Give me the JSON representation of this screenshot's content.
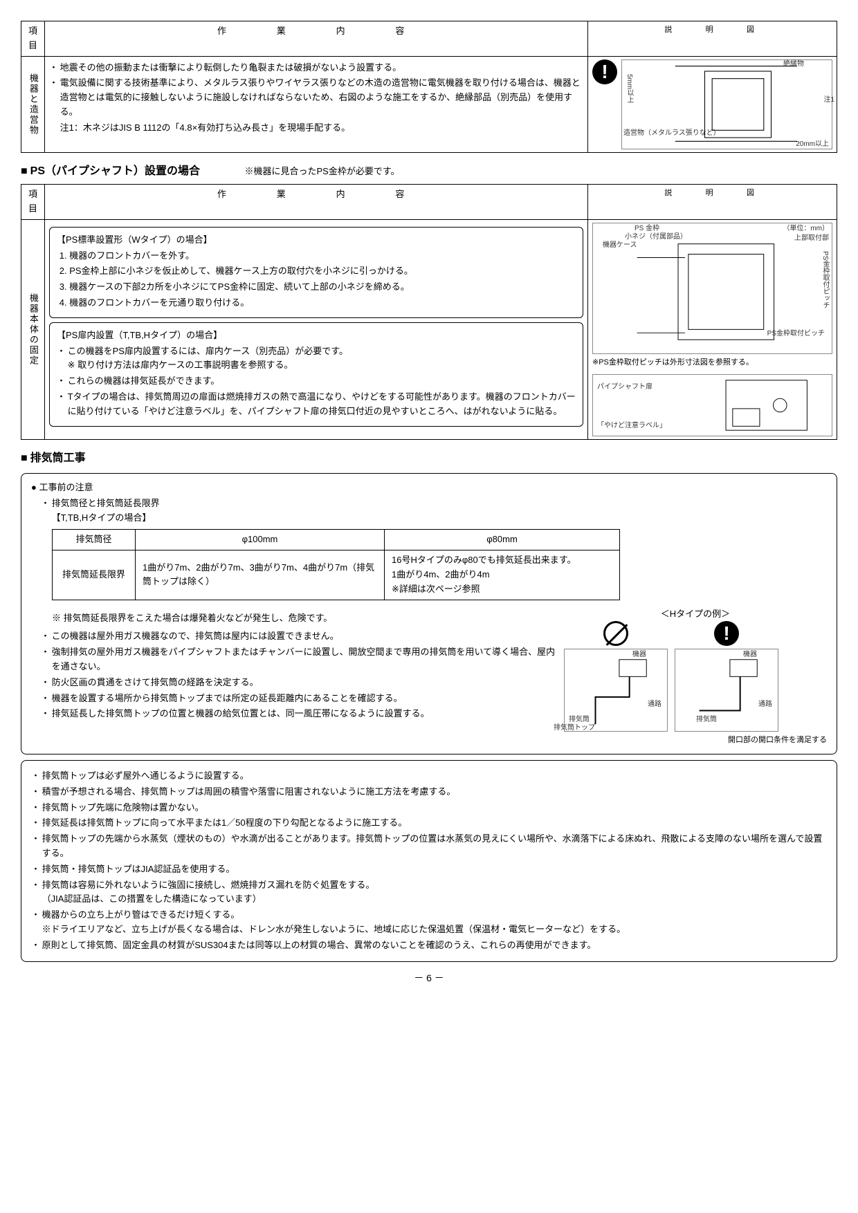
{
  "t1": {
    "h_item": "項目",
    "h_work": "作　　業　　内　　容",
    "h_diag": "説　　明　　図",
    "row_item": "機器と造営物",
    "bul1": "地震その他の振動または衝撃により転倒したり亀裂または破損がないよう設置する。",
    "bul2": "電気設備に関する技術基準により、メタルラス張りやワイヤラス張りなどの木造の造営物に電気機器を取り付ける場合は、機器と造営物とは電気的に接触しないように施設しなければならないため、右図のような施工をするか、絶縁部品（別売品）を使用する。",
    "note1": "注1：木ネジはJIS B 1112の「4.8×有効打ち込み長さ」を現場手配する。",
    "d_labels": {
      "a": "絶縁物",
      "b": "5mm以上",
      "c": "注1",
      "d": "造営物（メタルラス張りなど）",
      "e": "20mm以上"
    }
  },
  "ps_title": "PS（パイプシャフト）設置の場合",
  "ps_note_right": "※機器に見合ったPS金枠が必要です。",
  "t2": {
    "h_item": "項目",
    "h_work": "作　　業　　内　　容",
    "h_diag": "説　　明　　図",
    "row_item": "機器本体の固定",
    "box1_title": "【PS標準設置形（Wタイプ）の場合】",
    "s1": "機器のフロントカバーを外す。",
    "s2": "PS金枠上部に小ネジを仮止めして、機器ケース上方の取付穴を小ネジに引っかける。",
    "s3": "機器ケースの下部2カ所を小ネジにてPS金枠に固定、続いて上部の小ネジを締める。",
    "s4": "機器のフロントカバーを元通り取り付ける。",
    "box2_title": "【PS扉内設置（T,TB,Hタイプ）の場合】",
    "b1": "この機器をPS扉内設置するには、扉内ケース（別売品）が必要です。",
    "b1sub": "※ 取り付け方法は扉内ケースの工事説明書を参照する。",
    "b2": "これらの機器は排気延長ができます。",
    "b3": "Tタイプの場合は、排気筒周辺の扉面は燃焼排ガスの熱で高温になり、やけどをする可能性があります。機器のフロントカバーに貼り付けている「やけど注意ラベル」を、パイプシャフト扉の排気口付近の見やすいところへ、はがれないように貼る。",
    "d1": {
      "a": "PS 金枠",
      "b": "小ネジ（付属部品）",
      "c": "機器ケース",
      "d": "（単位：mm）",
      "e": "上部取付部",
      "f": "PS金枠取付ピッチ",
      "g": "PS金枠取付ビッチ",
      "h": "※PS金枠取付ピッチは外形寸法図を参照する。"
    },
    "d2": {
      "a": "パイプシャフト扉",
      "b": "「やけど注意ラベル」"
    }
  },
  "exhaust_title": "排気筒工事",
  "pre_title": "工事前の注意",
  "pre_b1": "排気筒径と排気筒延長限界",
  "pre_sub": "【T,TB,Hタイプの場合】",
  "tbl": {
    "h1": "排気筒径",
    "h2": "φ100mm",
    "h3": "φ80mm",
    "r1": "排気筒延長限界",
    "c2": "1曲がり7m、2曲がり7m、3曲がり7m、4曲がり7m（排気筒トップは除く）",
    "c3": "16号Hタイプのみφ80でも排気延長出来ます。\n1曲がり4m、2曲がり4m\n※詳細は次ページ参照"
  },
  "mid_note": "※ 排気筒延長限界をこえた場合は爆発着火などが発生し、危険です。",
  "mid_bullets": [
    "この機器は屋外用ガス機器なので、排気筒は屋内には設置できません。",
    "強制排気の屋外用ガス機器をパイプシャフトまたはチャンバーに設置し、開放空間まで専用の排気筒を用いて導く場合、屋内を通さない。",
    "防火区画の貫通をさけて排気筒の経路を決定する。",
    "機器を設置する場所から排気筒トップまでは所定の延長距離内にあることを確認する。",
    "排気延長した排気筒トップの位置と機器の給気位置とは、同一風圧帯になるように設置する。"
  ],
  "h_example_title": "＜Hタイプの例＞",
  "h_labels": {
    "a": "機器",
    "b": "通路",
    "c": "排気筒",
    "d": "排気筒トップ",
    "e": "開口部の開口条件を満足する"
  },
  "lower_bullets": [
    "排気筒トップは必ず屋外へ通じるように設置する。",
    "積雪が予想される場合、排気筒トップは周囲の積雪や落雪に阻害されないように施工方法を考慮する。",
    "排気筒トップ先端に危険物は置かない。",
    "排気延長は排気筒トップに向って水平または1／50程度の下り勾配となるように施工する。",
    "排気筒トップの先端から水蒸気（煙状のもの）や水滴が出ることがあります。排気筒トップの位置は水蒸気の見えにくい場所や、水滴落下による床ぬれ、飛散による支障のない場所を選んで設置する。",
    "排気筒・排気筒トップはJIA認証品を使用する。",
    "排気筒は容易に外れないように強固に接続し、燃焼排ガス漏れを防ぐ処置をする。\n（JIA認証品は、この措置をした構造になっています）",
    "機器からの立ち上がり管はできるだけ短くする。\n※ドライエリアなど、立ち上げが長くなる場合は、ドレン水が発生しないように、地域に応じた保温処置（保温材・電気ヒーターなど）をする。",
    "原則として排気筒、固定金具の材質がSUS304または同等以上の材質の場合、異常のないことを確認のうえ、これらの再使用ができます。"
  ],
  "page": "－ 6 －"
}
